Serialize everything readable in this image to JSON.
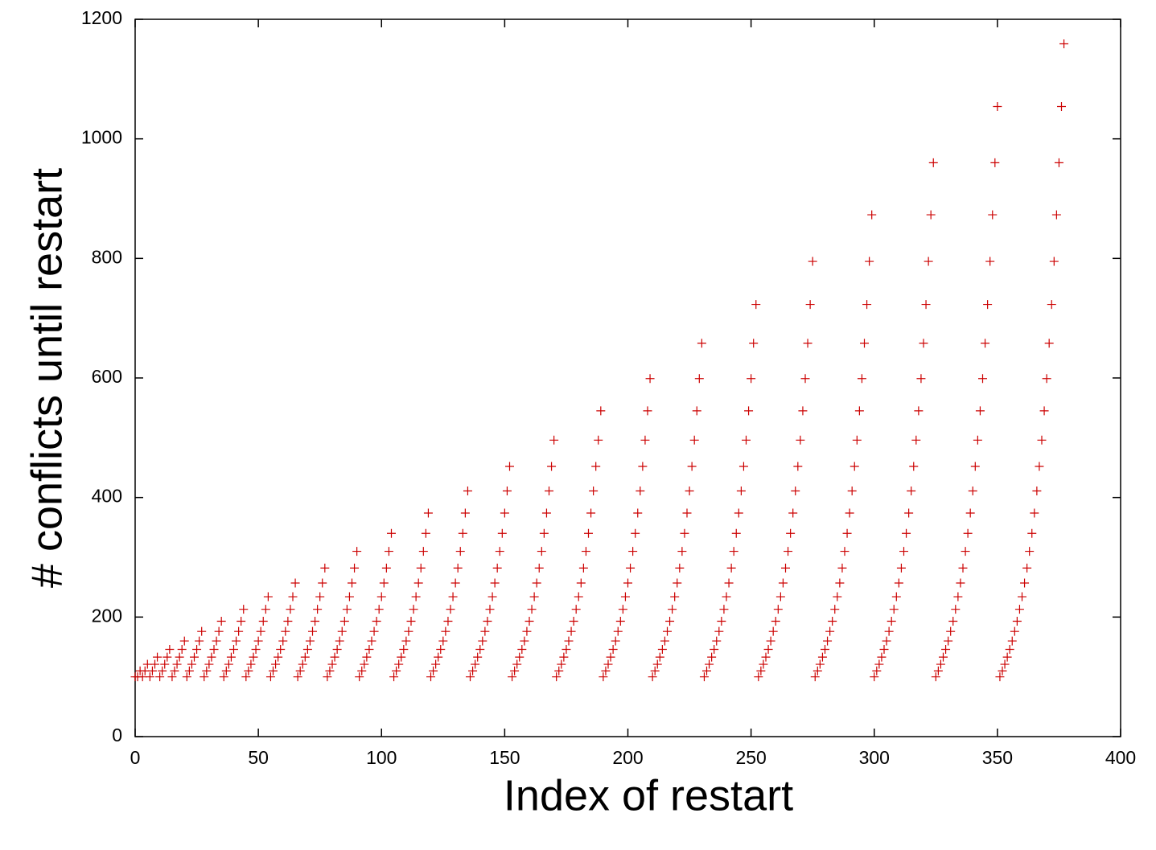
{
  "chart_data": {
    "type": "scatter",
    "x_label": "Index of restart",
    "y_label": "# conflicts until restart",
    "xlim": [
      0,
      400
    ],
    "xticks": [
      0,
      50,
      100,
      150,
      200,
      250,
      300,
      350,
      400
    ],
    "ylim": [
      0,
      1200
    ],
    "yticks": [
      0,
      200,
      400,
      600,
      800,
      1000,
      1200
    ],
    "marker": "plus",
    "series": [
      {
        "color": "#cc0000",
        "x": [
          0,
          1,
          2,
          3,
          4,
          5,
          6,
          7,
          8,
          9,
          10,
          11,
          12,
          13,
          14,
          15,
          16,
          17,
          18,
          19,
          20,
          21,
          22,
          23,
          24,
          25,
          26,
          27,
          28,
          29,
          30,
          31,
          32,
          33,
          34,
          35,
          36,
          37,
          38,
          39,
          40,
          41,
          42,
          43,
          44,
          45,
          46,
          47,
          48,
          49,
          50,
          51,
          52,
          53,
          54,
          55,
          56,
          57,
          58,
          59,
          60,
          61,
          62,
          63,
          64,
          65,
          66,
          67,
          68,
          69,
          70,
          71,
          72,
          73,
          74,
          75,
          76,
          77,
          78,
          79,
          80,
          81,
          82,
          83,
          84,
          85,
          86,
          87,
          88,
          89,
          90,
          91,
          92,
          93,
          94,
          95,
          96,
          97,
          98,
          99,
          100,
          101,
          102,
          103,
          104,
          105,
          106,
          107,
          108,
          109,
          110,
          111,
          112,
          113,
          114,
          115,
          116,
          117,
          118,
          119,
          120,
          121,
          122,
          123,
          124,
          125,
          126,
          127,
          128,
          129,
          130,
          131,
          132,
          133,
          134,
          135,
          136,
          137,
          138,
          139,
          140,
          141,
          142,
          143,
          144,
          145,
          146,
          147,
          148,
          149,
          150,
          151,
          152,
          153,
          154,
          155,
          156,
          157,
          158,
          159,
          160,
          161,
          162,
          163,
          164,
          165,
          166,
          167,
          168,
          169,
          170,
          171,
          172,
          173,
          174,
          175,
          176,
          177,
          178,
          179,
          180,
          181,
          182,
          183,
          184,
          185,
          186,
          187,
          188,
          189,
          190,
          191,
          192,
          193,
          194,
          195,
          196,
          197,
          198,
          199,
          200,
          201,
          202,
          203,
          204,
          205,
          206,
          207,
          208,
          209,
          210,
          211,
          212,
          213,
          214,
          215,
          216,
          217,
          218,
          219,
          220,
          221,
          222,
          223,
          224,
          225,
          226,
          227,
          228,
          229,
          230,
          231,
          232,
          233,
          234,
          235,
          236,
          237,
          238,
          239,
          240,
          241,
          242,
          243,
          244,
          245,
          246,
          247,
          248,
          249,
          250,
          251,
          252,
          253,
          254,
          255,
          256,
          257,
          258,
          259,
          260,
          261,
          262,
          263,
          264,
          265,
          266,
          267,
          268,
          269,
          270,
          271,
          272,
          273,
          274,
          275,
          276,
          277,
          278,
          279,
          280,
          281,
          282,
          283,
          284,
          285,
          286,
          287,
          288,
          289,
          290,
          291,
          292,
          293,
          294,
          295,
          296,
          297,
          298,
          299,
          300,
          301,
          302,
          303,
          304,
          305,
          306,
          307,
          308,
          309,
          310,
          311,
          312,
          313,
          314,
          315,
          316,
          317,
          318,
          319,
          320,
          321,
          322,
          323,
          324,
          325,
          326,
          327,
          328,
          329,
          330,
          331,
          332,
          333,
          334,
          335,
          336,
          337,
          338,
          339,
          340,
          341,
          342,
          343,
          344,
          345,
          346,
          347,
          348,
          349,
          350,
          351,
          352,
          353,
          354,
          355,
          356,
          357,
          358,
          359,
          360,
          361,
          362,
          363,
          364,
          365,
          366,
          367,
          368,
          369,
          370,
          371,
          372,
          373,
          374,
          375,
          376,
          377
        ],
        "values": [
          100,
          100,
          110,
          100,
          110,
          121,
          100,
          110,
          121,
          133,
          100,
          110,
          121,
          133,
          146,
          100,
          110,
          121,
          133,
          146,
          160,
          100,
          110,
          121,
          133,
          146,
          160,
          176,
          100,
          110,
          121,
          133,
          146,
          160,
          176,
          193,
          100,
          110,
          121,
          133,
          146,
          160,
          176,
          193,
          213,
          100,
          110,
          121,
          133,
          146,
          160,
          176,
          193,
          213,
          234,
          100,
          110,
          121,
          133,
          146,
          160,
          176,
          193,
          213,
          234,
          257,
          100,
          110,
          121,
          133,
          146,
          160,
          176,
          193,
          213,
          234,
          257,
          282,
          100,
          110,
          121,
          133,
          146,
          160,
          176,
          193,
          213,
          234,
          257,
          282,
          310,
          100,
          110,
          121,
          133,
          146,
          160,
          176,
          193,
          213,
          234,
          257,
          282,
          310,
          340,
          100,
          110,
          121,
          133,
          146,
          160,
          176,
          193,
          213,
          234,
          257,
          282,
          310,
          340,
          374,
          100,
          110,
          121,
          133,
          146,
          160,
          176,
          193,
          213,
          234,
          257,
          282,
          310,
          340,
          374,
          411,
          100,
          110,
          121,
          133,
          146,
          160,
          176,
          193,
          213,
          234,
          257,
          282,
          310,
          340,
          374,
          411,
          452,
          100,
          110,
          121,
          133,
          146,
          160,
          176,
          193,
          213,
          234,
          257,
          282,
          310,
          340,
          374,
          411,
          452,
          496,
          100,
          110,
          121,
          133,
          146,
          160,
          176,
          193,
          213,
          234,
          257,
          282,
          310,
          340,
          374,
          411,
          452,
          496,
          545,
          100,
          110,
          121,
          133,
          146,
          160,
          176,
          193,
          213,
          234,
          257,
          282,
          310,
          340,
          374,
          411,
          452,
          496,
          545,
          599,
          100,
          110,
          121,
          133,
          146,
          160,
          176,
          193,
          213,
          234,
          257,
          282,
          310,
          340,
          374,
          411,
          452,
          496,
          545,
          599,
          658,
          100,
          110,
          121,
          133,
          146,
          160,
          176,
          193,
          213,
          234,
          257,
          282,
          310,
          340,
          374,
          411,
          452,
          496,
          545,
          599,
          658,
          723,
          100,
          110,
          121,
          133,
          146,
          160,
          176,
          193,
          213,
          234,
          257,
          282,
          310,
          340,
          374,
          411,
          452,
          496,
          545,
          599,
          658,
          723,
          795,
          100,
          110,
          121,
          133,
          146,
          160,
          176,
          193,
          213,
          234,
          257,
          282,
          310,
          340,
          374,
          411,
          452,
          496,
          545,
          599,
          658,
          723,
          795,
          873,
          100,
          110,
          121,
          133,
          146,
          160,
          176,
          193,
          213,
          234,
          257,
          282,
          310,
          340,
          374,
          411,
          452,
          496,
          545,
          599,
          658,
          723,
          795,
          873,
          960,
          100,
          110,
          121,
          133,
          146,
          160,
          176,
          193,
          213,
          234,
          257,
          282,
          310,
          340,
          374,
          411,
          452,
          496,
          545,
          599,
          658,
          723,
          795,
          873,
          960,
          1054,
          100,
          110,
          121,
          133,
          146,
          160,
          176,
          193,
          213,
          234,
          257,
          282,
          310,
          340,
          374,
          411,
          452,
          496,
          545,
          599,
          658,
          723,
          795,
          873,
          960,
          1054,
          1159
        ]
      }
    ]
  }
}
